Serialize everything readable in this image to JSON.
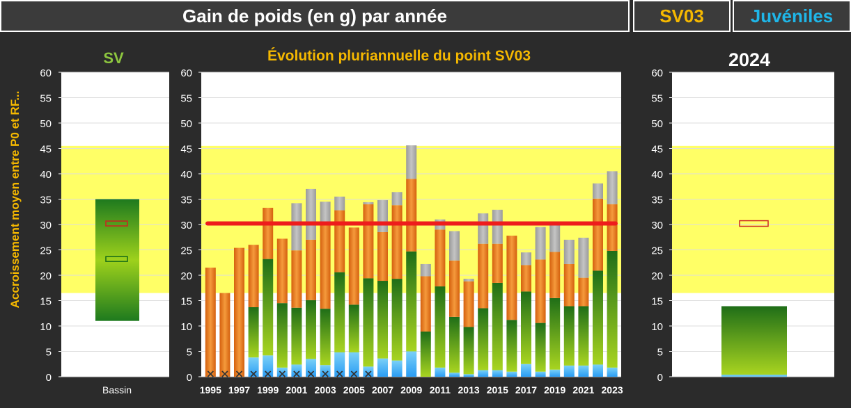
{
  "header": {
    "title": "Gain de poids (en g) par année",
    "site": "SV03",
    "life_stage": "Juvéniles"
  },
  "colors": {
    "band": "#ffff66",
    "reference_line": "#ee1c1c",
    "title_yellow": "#f5b800",
    "sv_green": "#8dc63f",
    "bars_orange": "#e07a1a",
    "bars_green": "#2e8b1e",
    "bars_blue": "#2a9df4",
    "bars_grey": "#a8a8a8"
  },
  "y_axis_label": "Accroissement moyen entre P0 et RF...",
  "chart_data": [
    {
      "type": "bar",
      "title": "SV",
      "categories": [
        "Bassin"
      ],
      "ylim": [
        0,
        60
      ],
      "yticks": [
        "0",
        "5",
        "10",
        "15",
        "20",
        "25",
        "30",
        "35",
        "40",
        "45",
        "50",
        "55",
        "60"
      ],
      "reference_band": [
        16.5,
        45.5
      ],
      "range_bar": {
        "min": 11,
        "max": 35
      },
      "markers": [
        {
          "color": "red",
          "value": 30.2
        },
        {
          "color": "green",
          "value": 23.2
        }
      ]
    },
    {
      "type": "bar",
      "stacked": true,
      "title": "Évolution pluriannuelle du point SV03",
      "ylim": [
        0,
        60
      ],
      "yticks": [
        "0",
        "5",
        "10",
        "15",
        "20",
        "25",
        "30",
        "35",
        "40",
        "45",
        "50",
        "55",
        "60"
      ],
      "x_tick_labels": [
        "1995",
        "1997",
        "1999",
        "2001",
        "2003",
        "2005",
        "2007",
        "2009",
        "2011",
        "2013",
        "2015",
        "2017",
        "2019",
        "2021",
        "2023"
      ],
      "reference_band": [
        16.5,
        45.5
      ],
      "reference_line": 30.2,
      "missing_markers": [
        "1995",
        "1996",
        "1997",
        "1998",
        "1999",
        "2000",
        "2001",
        "2002",
        "2003",
        "2004",
        "2005",
        "2006"
      ],
      "categories": [
        "1995",
        "1996",
        "1997",
        "1998",
        "1999",
        "2000",
        "2001",
        "2002",
        "2003",
        "2004",
        "2005",
        "2006",
        "2007",
        "2008",
        "2009",
        "2010",
        "2011",
        "2012",
        "2013",
        "2014",
        "2015",
        "2016",
        "2017",
        "2018",
        "2019",
        "2020",
        "2021",
        "2022",
        "2023"
      ],
      "series": [
        {
          "color": "blue",
          "values": [
            0,
            0,
            0,
            3.8,
            4.2,
            1.8,
            2.4,
            3.5,
            2.3,
            4.8,
            4.8,
            2.0,
            3.6,
            3.2,
            5.0,
            0,
            1.8,
            0.8,
            0.5,
            1.3,
            1.3,
            1.0,
            2.5,
            1.0,
            1.4,
            2.2,
            2.2,
            2.4,
            1.8
          ]
        },
        {
          "color": "green",
          "values": [
            0,
            0,
            0,
            9.9,
            19.0,
            12.7,
            11.2,
            11.6,
            11.1,
            15.8,
            9.4,
            17.4,
            15.3,
            16.1,
            19.7,
            8.9,
            16.0,
            11.0,
            9.3,
            12.2,
            17.2,
            10.2,
            14.3,
            9.6,
            14.1,
            11.7,
            11.7,
            18.5,
            23.0
          ]
        },
        {
          "color": "orange",
          "values": [
            21.5,
            16.5,
            25.4,
            12.3,
            10.1,
            12.7,
            11.3,
            11.9,
            17.1,
            12.2,
            15.2,
            14.6,
            9.6,
            14.5,
            14.3,
            10.9,
            11.2,
            11.1,
            9.0,
            12.7,
            7.7,
            16.6,
            5.2,
            12.5,
            9.1,
            8.3,
            5.6,
            14.2,
            9.2
          ]
        },
        {
          "color": "grey",
          "values": [
            0,
            0,
            0,
            0,
            0,
            0,
            9.3,
            10.0,
            4.0,
            2.7,
            0,
            0.4,
            6.3,
            2.6,
            6.6,
            2.4,
            2.0,
            5.8,
            0.5,
            6.0,
            6.7,
            0,
            2.5,
            6.4,
            5.7,
            4.8,
            7.9,
            3.0,
            6.5
          ]
        }
      ]
    },
    {
      "type": "bar",
      "stacked": true,
      "title": "2024",
      "ylim": [
        0,
        60
      ],
      "yticks": [
        "0",
        "5",
        "10",
        "15",
        "20",
        "25",
        "30",
        "35",
        "40",
        "45",
        "50",
        "55",
        "60"
      ],
      "reference_band": [
        16.5,
        45.5
      ],
      "markers": [
        {
          "color": "red",
          "value": 30.2
        }
      ],
      "series": [
        {
          "color": "blue",
          "values": [
            0.4
          ]
        },
        {
          "color": "green",
          "values": [
            13.5
          ]
        }
      ]
    }
  ]
}
